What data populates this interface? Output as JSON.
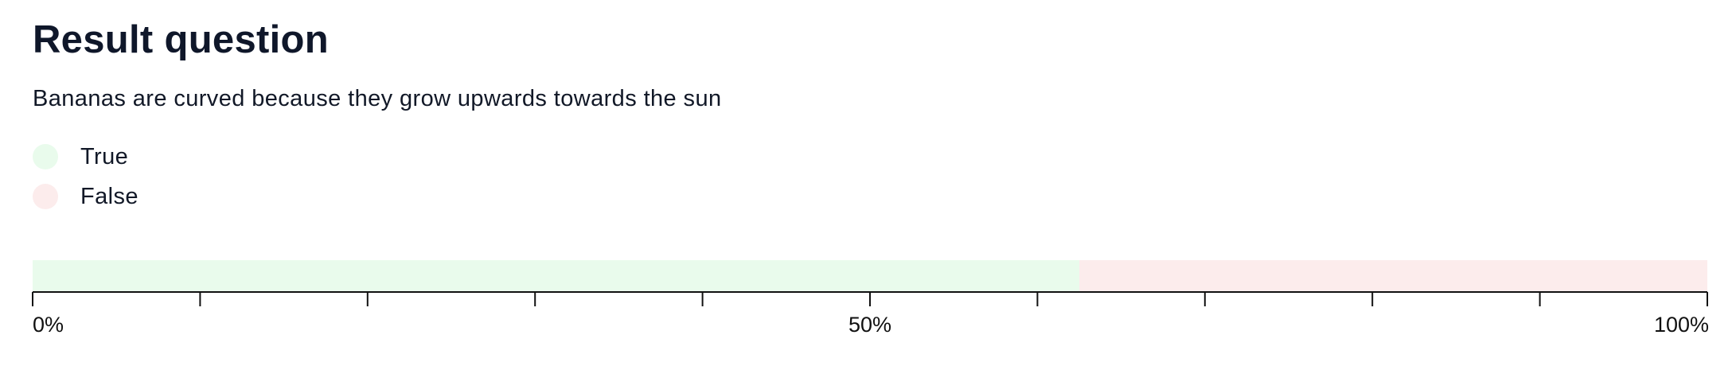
{
  "title": "Result question",
  "question": "Bananas are curved because they grow upwards towards the sun",
  "legend": [
    {
      "label": "True",
      "color": "#e9fbec"
    },
    {
      "label": "False",
      "color": "#fcecec"
    }
  ],
  "chart_data": {
    "type": "bar",
    "orientation": "horizontal-stacked",
    "title": "",
    "xlabel": "",
    "ylabel": "",
    "xlim": [
      0,
      100
    ],
    "unit": "%",
    "grid": false,
    "legend_position": "top-left",
    "series": [
      {
        "name": "True",
        "values": [
          62.5
        ],
        "color": "#e9fbec"
      },
      {
        "name": "False",
        "values": [
          37.5
        ],
        "color": "#fcecec"
      }
    ],
    "ticks": [
      0,
      10,
      20,
      30,
      40,
      50,
      60,
      70,
      80,
      90,
      100
    ],
    "tick_labels": [
      {
        "value": 0,
        "text": "0%"
      },
      {
        "value": 50,
        "text": "50%"
      },
      {
        "value": 100,
        "text": "100%"
      }
    ],
    "axis_color": "#111111"
  }
}
